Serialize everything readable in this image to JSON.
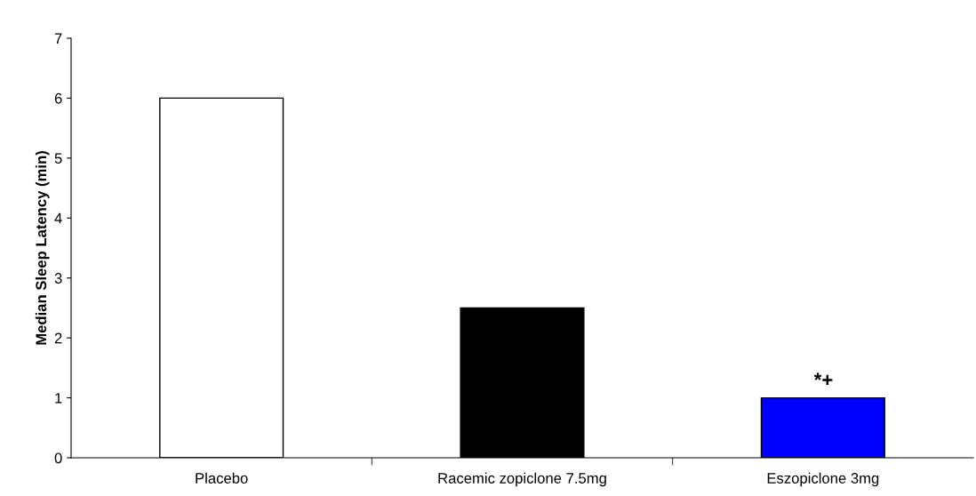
{
  "chart_data": {
    "type": "bar",
    "ylabel": "Median Sleep Latency (min)",
    "categories": [
      "Placebo",
      "Racemic zopiclone 7.5mg",
      "Eszopiclone 3mg"
    ],
    "values": [
      6,
      2.5,
      1
    ],
    "colors": [
      "#ffffff",
      "#000000",
      "#0000ff"
    ],
    "ylim": [
      0,
      7
    ],
    "yticks": [
      0,
      1,
      2,
      3,
      4,
      5,
      6,
      7
    ],
    "annotations": [
      "*+"
    ],
    "grid": false,
    "legend": false
  }
}
